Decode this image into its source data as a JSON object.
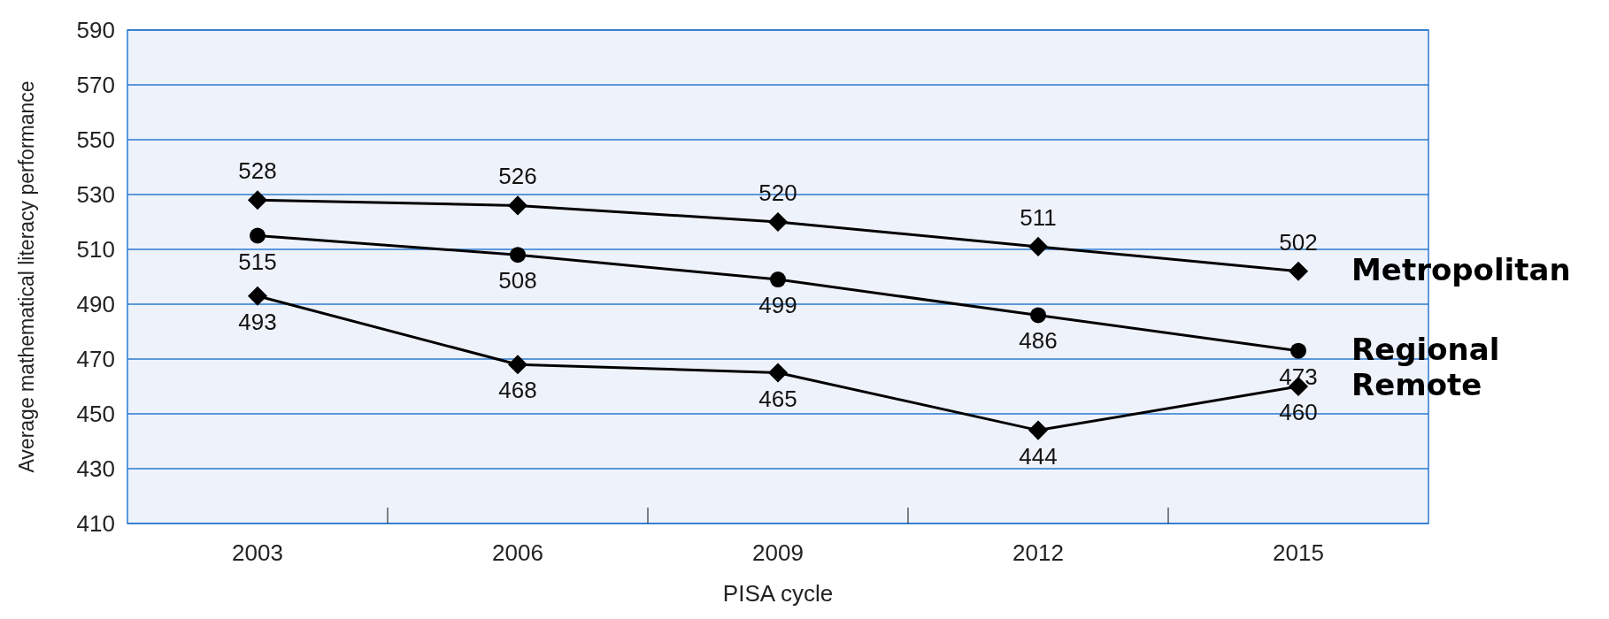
{
  "chart_data": {
    "type": "line",
    "xlabel": "PISA cycle",
    "ylabel": "Average mathematical literacy performance",
    "categories": [
      "2003",
      "2006",
      "2009",
      "2012",
      "2015"
    ],
    "series": [
      {
        "name": "Metropolitan",
        "color": "#000000",
        "marker": "diamond",
        "values": [
          528,
          526,
          520,
          511,
          502
        ]
      },
      {
        "name": "Regional",
        "color": "#000000",
        "marker": "circle",
        "values": [
          515,
          508,
          499,
          486,
          473
        ]
      },
      {
        "name": "Remote",
        "color": "#000000",
        "marker": "diamond",
        "values": [
          493,
          468,
          465,
          444,
          460
        ]
      }
    ],
    "ylim": [
      410,
      590
    ],
    "yticks": [
      410,
      430,
      450,
      470,
      490,
      510,
      530,
      550,
      570,
      590
    ],
    "grid": "y",
    "legend": false,
    "data_labels": true
  }
}
